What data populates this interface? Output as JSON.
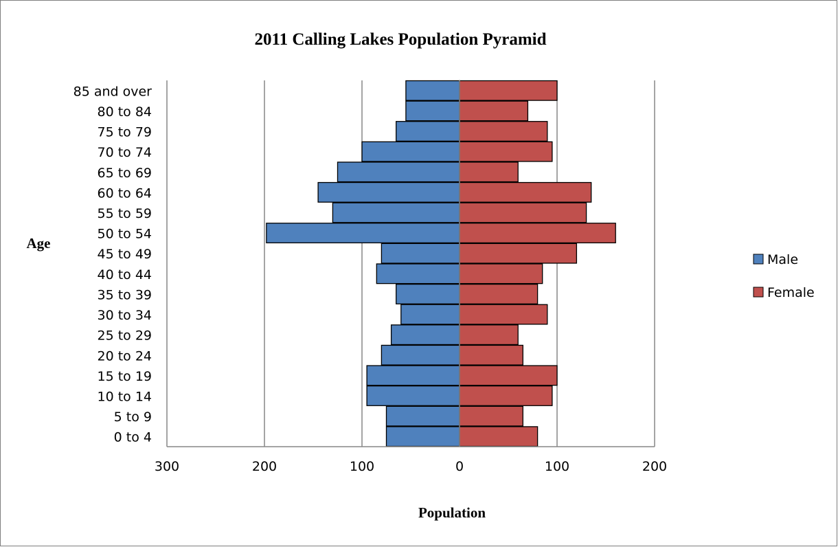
{
  "chart_data": {
    "type": "bar",
    "orientation": "horizontal",
    "title": "2011 Calling Lakes Population Pyramid",
    "xlabel": "Population",
    "ylabel": "Age",
    "categories": [
      "85  and over",
      "80 to 84",
      "75 to 79",
      "70 to 74",
      "65 to 69",
      "60 to 64",
      "55 to 59",
      "50 to 54",
      "45 to 49",
      "40 to 44",
      "35 to 39",
      "30 to 34",
      "25 to 29",
      "20 to 24",
      "15 to 19",
      "10 to 14",
      "5 to 9",
      "0 to 4"
    ],
    "series": [
      {
        "name": "Male",
        "color": "#4f81bd",
        "values": [
          55,
          55,
          65,
          100,
          125,
          145,
          130,
          198,
          80,
          85,
          65,
          60,
          70,
          80,
          95,
          95,
          75,
          75
        ]
      },
      {
        "name": "Female",
        "color": "#c0504d",
        "values": [
          100,
          70,
          90,
          95,
          60,
          135,
          130,
          160,
          120,
          85,
          80,
          90,
          60,
          65,
          100,
          95,
          65,
          80
        ]
      }
    ],
    "xlim": [
      -300,
      200
    ],
    "x_ticks": [
      -300,
      -200,
      -100,
      0,
      100,
      200
    ],
    "x_tick_labels": [
      "300",
      "200",
      "100",
      "0",
      "100",
      "200"
    ],
    "grid": "vertical",
    "legend": "right"
  }
}
